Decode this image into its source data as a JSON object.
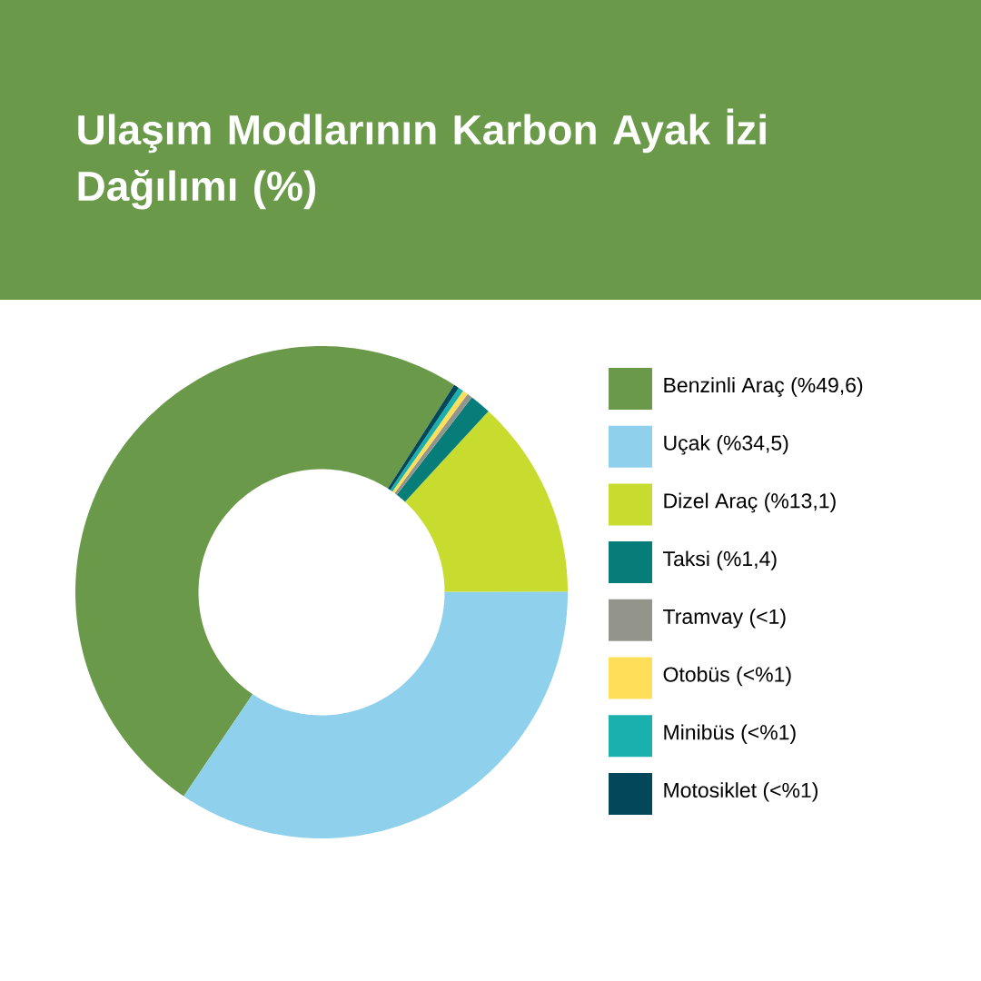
{
  "chart_data": {
    "type": "donut",
    "title": "Ulaşım Modlarının Karbon Ayak İzi Dağılımı (%)",
    "categories": [
      "Benzinli Araç (%49,6)",
      "Uçak (%34,5)",
      "Dizel Araç (%13,1)",
      "Taksi (%1,4)",
      "Tramvay (<1)",
      "Otobüs (<%1)",
      "Minibüs (<%1)",
      "Motosiklet (<%1)"
    ],
    "values": [
      49.6,
      34.5,
      13.1,
      1.4,
      0.35,
      0.35,
      0.35,
      0.35
    ],
    "colors": [
      "#6a994a",
      "#8fd0ec",
      "#c8dc30",
      "#077d7a",
      "#93958a",
      "#ffdf5a",
      "#1ab0ae",
      "#03485a"
    ],
    "legend": "right"
  }
}
